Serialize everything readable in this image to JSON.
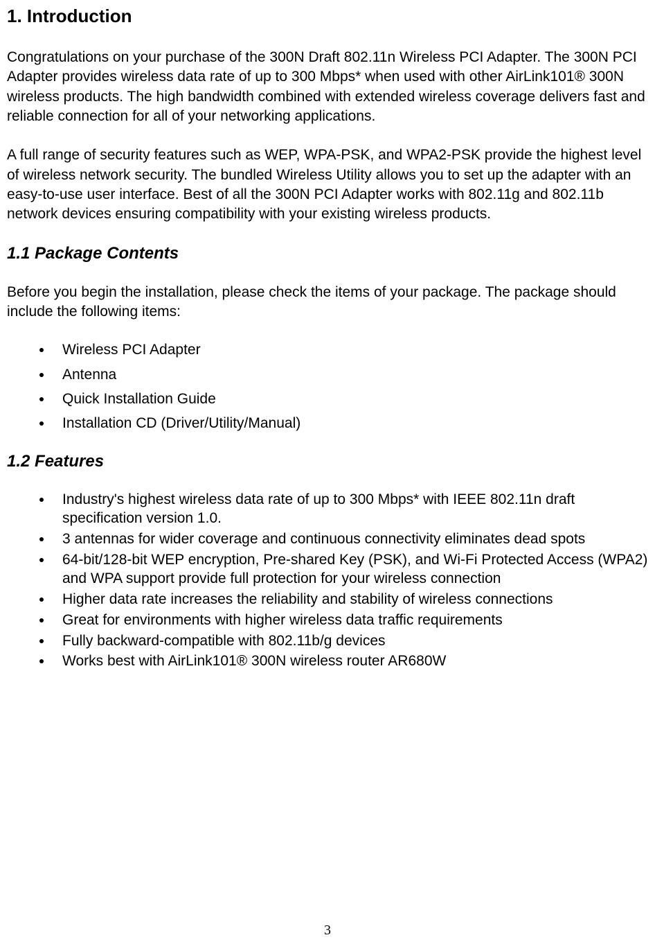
{
  "page": {
    "number": "3",
    "background_color": "#ffffff",
    "text_color": "#000000"
  },
  "section": {
    "title": "1. Introduction",
    "para1": "Congratulations on your purchase of the 300N Draft 802.11n Wireless PCI Adapter. The 300N PCI Adapter provides wireless data rate of up to 300 Mbps* when used with other AirLink101® 300N wireless products. The high bandwidth combined with extended wireless coverage delivers fast and reliable connection for all of your networking applications.",
    "para2": "A full range of security features such as WEP, WPA-PSK, and WPA2-PSK provide the highest level of wireless network security. The bundled Wireless Utility allows you to set up the adapter with an easy-to-use user interface. Best of all the 300N PCI Adapter works with 802.11g and 802.11b network devices ensuring compatibility with your existing wireless products."
  },
  "subsection1": {
    "title": "1.1 Package Contents",
    "intro": "Before you begin the installation, please check the items of your package. The package should include the following items:",
    "items": [
      "Wireless PCI Adapter",
      "Antenna",
      "Quick Installation Guide",
      "Installation CD (Driver/Utility/Manual)"
    ]
  },
  "subsection2": {
    "title": "1.2 Features",
    "items": [
      "Industry's highest wireless data rate of up to 300 Mbps* with IEEE 802.11n draft specification version 1.0.",
      "3 antennas for wider coverage and continuous connectivity eliminates dead spots",
      "64-bit/128-bit WEP encryption, Pre-shared Key (PSK), and Wi-Fi Protected Access (WPA2) and WPA support provide full protection for your wireless connection",
      "Higher data rate increases the reliability and stability of wireless connections",
      "Great for environments with higher wireless data traffic requirements",
      "Fully backward-compatible with 802.11b/g devices",
      "Works best with AirLink101® 300N wireless router AR680W"
    ]
  },
  "typography": {
    "h1_fontsize": 26,
    "h2_fontsize": 24,
    "body_fontsize": 21,
    "pagenum_fontsize": 20,
    "body_font": "Arial",
    "pagenum_font": "Times New Roman"
  }
}
